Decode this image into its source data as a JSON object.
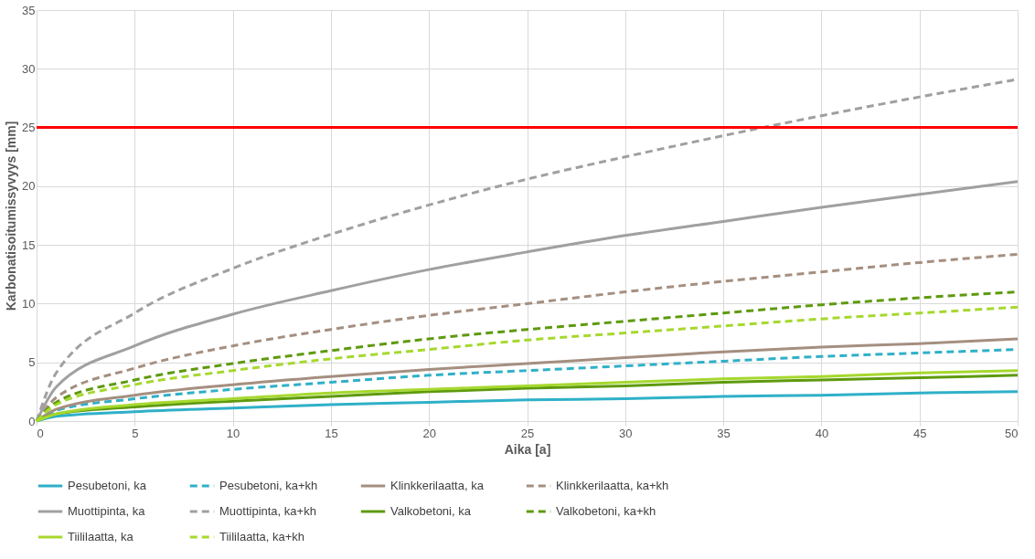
{
  "chart_data": {
    "type": "line",
    "xlabel": "Aika [a]",
    "ylabel": "Karbonatisoitumissyvyys [mm]",
    "x": [
      0,
      1,
      5,
      10,
      15,
      20,
      25,
      30,
      35,
      40,
      45,
      50
    ],
    "xlim": [
      0,
      50
    ],
    "xticks": [
      0,
      5,
      10,
      15,
      20,
      25,
      30,
      35,
      40,
      45,
      50
    ],
    "ylim": [
      0,
      35
    ],
    "yticks": [
      0,
      5,
      10,
      15,
      20,
      25,
      30,
      35
    ],
    "grid": true,
    "legend": "bottom",
    "marker": "none",
    "ref_lines": [
      {
        "axis": "y",
        "value": 25,
        "color": "#ff0000",
        "line_style": "solid"
      }
    ],
    "series": [
      {
        "name": "Pesubetoni, ka",
        "color": "#2fb0c8",
        "line_style": "solid",
        "values": [
          0,
          0.4,
          0.8,
          1.1,
          1.4,
          1.6,
          1.8,
          1.9,
          2.1,
          2.2,
          2.4,
          2.5
        ]
      },
      {
        "name": "Pesubetoni, ka+kh",
        "color": "#2fb0c8",
        "line_style": "dashed",
        "values": [
          0,
          0.9,
          1.9,
          2.7,
          3.3,
          3.9,
          4.3,
          4.7,
          5.1,
          5.5,
          5.8,
          6.1
        ]
      },
      {
        "name": "Klinkkerilaatta, ka",
        "color": "#a58f80",
        "line_style": "solid",
        "values": [
          0,
          1.0,
          2.2,
          3.1,
          3.8,
          4.4,
          4.9,
          5.4,
          5.9,
          6.3,
          6.6,
          7.0
        ]
      },
      {
        "name": "Klinkkerilaatta, ka+kh",
        "color": "#a58f80",
        "line_style": "dashed",
        "values": [
          0,
          2.0,
          4.5,
          6.4,
          7.8,
          9.0,
          10.0,
          11.0,
          11.9,
          12.7,
          13.5,
          14.2
        ]
      },
      {
        "name": "Muottipinta, ka",
        "color": "#a0a0a0",
        "line_style": "solid",
        "values": [
          0,
          2.9,
          6.4,
          9.1,
          11.1,
          12.9,
          14.4,
          15.8,
          17.0,
          18.2,
          19.3,
          20.4
        ]
      },
      {
        "name": "Muottipinta, ka+kh",
        "color": "#a0a0a0",
        "line_style": "dashed",
        "values": [
          0,
          4.1,
          9.2,
          13.0,
          15.9,
          18.4,
          20.6,
          22.5,
          24.3,
          26.0,
          27.6,
          29.1
        ]
      },
      {
        "name": "Valkobetoni, ka",
        "color": "#5e9a0e",
        "line_style": "solid",
        "values": [
          0,
          0.6,
          1.2,
          1.7,
          2.1,
          2.5,
          2.8,
          3.0,
          3.3,
          3.5,
          3.7,
          3.9
        ]
      },
      {
        "name": "Valkobetoni, ka+kh",
        "color": "#5e9a0e",
        "line_style": "dashed",
        "values": [
          0,
          1.6,
          3.5,
          4.9,
          6.0,
          7.0,
          7.8,
          8.5,
          9.2,
          9.9,
          10.5,
          11.0
        ]
      },
      {
        "name": "Tiililaatta, ka",
        "color": "#a6d82e",
        "line_style": "solid",
        "values": [
          0,
          0.6,
          1.4,
          1.9,
          2.4,
          2.7,
          3.0,
          3.3,
          3.6,
          3.8,
          4.1,
          4.3
        ]
      },
      {
        "name": "Tiililaatta, ka+kh",
        "color": "#a6d82e",
        "line_style": "dashed",
        "values": [
          0,
          1.4,
          3.1,
          4.3,
          5.3,
          6.1,
          6.9,
          7.5,
          8.1,
          8.7,
          9.2,
          9.7
        ]
      }
    ]
  }
}
